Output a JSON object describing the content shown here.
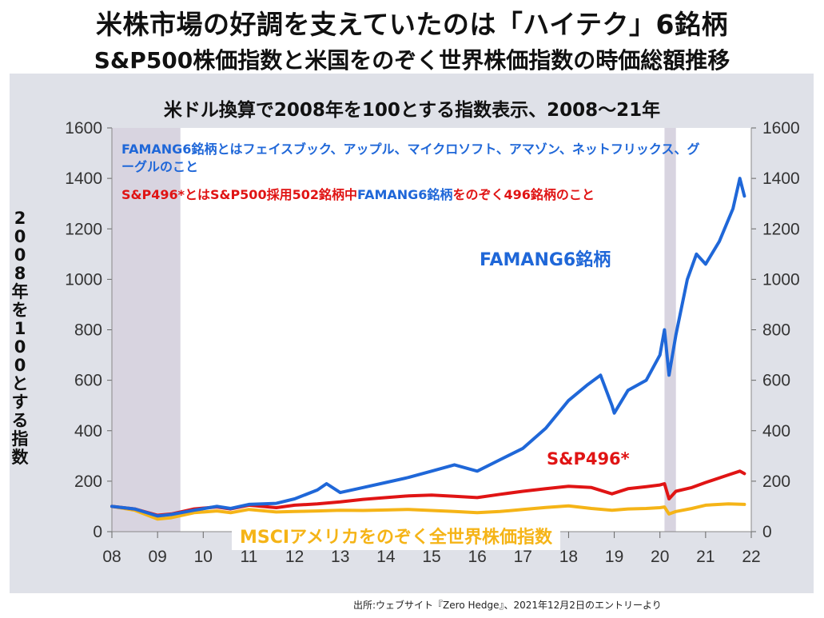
{
  "header": {
    "title": "米株市場の好調を支えていたのは「ハイテク」6銘柄",
    "subtitle": "S&P500株価指数と米国をのぞく世界株価指数の時価総額推移"
  },
  "chart_subtitle": "米ドル換算で2008年を100とする指数表示、2008～21年",
  "y_axis_label": "2008年を100とする指数",
  "notes": {
    "famang_definition": "FAMANG6銘柄とはフェイスブック、アップル、マイクロソフト、アマゾン、ネットフリックス、グーグルのこと",
    "sp496_definition_part1": "S&P496*とはS&P500採用502銘柄中",
    "sp496_definition_part2": "FAMANG6銘柄",
    "sp496_definition_part3": "をのぞく496銘柄のこと"
  },
  "series_labels": {
    "famang": "FAMANG6銘柄",
    "sp496": "S&P496*",
    "msci": "MSCIアメリカをのぞく全世界株価指数"
  },
  "source": "出所:ウェブサイト『Zero Hedge』、2021年12月2日のエントリーより",
  "colors": {
    "famang": "#1f67d8",
    "sp496": "#e01414",
    "msci": "#f5b417",
    "recession_shade": "#d8d4e0"
  },
  "chart_data": {
    "type": "line",
    "x_ticks": [
      "08",
      "09",
      "10",
      "11",
      "12",
      "13",
      "14",
      "15",
      "16",
      "17",
      "18",
      "19",
      "20",
      "21",
      "22"
    ],
    "y_ticks": [
      "0",
      "200",
      "400",
      "600",
      "800",
      "1000",
      "1200",
      "1400",
      "1600"
    ],
    "ylim": [
      0,
      1600
    ],
    "xlim": [
      2008,
      2022
    ],
    "y_axis_both_sides": true,
    "shaded_periods": [
      [
        2008.0,
        2009.5
      ],
      [
        2020.1,
        2020.35
      ]
    ],
    "series": [
      {
        "name": "FAMANG6銘柄",
        "color": "#1f67d8",
        "points": [
          [
            2008.0,
            100
          ],
          [
            2008.5,
            90
          ],
          [
            2009.0,
            62
          ],
          [
            2009.3,
            68
          ],
          [
            2009.8,
            85
          ],
          [
            2010.3,
            100
          ],
          [
            2010.6,
            92
          ],
          [
            2011.0,
            108
          ],
          [
            2011.6,
            112
          ],
          [
            2012.0,
            130
          ],
          [
            2012.5,
            165
          ],
          [
            2012.7,
            190
          ],
          [
            2013.0,
            155
          ],
          [
            2013.5,
            175
          ],
          [
            2014.0,
            195
          ],
          [
            2014.5,
            215
          ],
          [
            2015.0,
            240
          ],
          [
            2015.5,
            265
          ],
          [
            2016.0,
            240
          ],
          [
            2016.5,
            285
          ],
          [
            2017.0,
            330
          ],
          [
            2017.5,
            410
          ],
          [
            2018.0,
            520
          ],
          [
            2018.4,
            580
          ],
          [
            2018.7,
            620
          ],
          [
            2018.95,
            500
          ],
          [
            2019.0,
            470
          ],
          [
            2019.3,
            560
          ],
          [
            2019.7,
            600
          ],
          [
            2020.0,
            700
          ],
          [
            2020.1,
            800
          ],
          [
            2020.2,
            620
          ],
          [
            2020.35,
            780
          ],
          [
            2020.6,
            1000
          ],
          [
            2020.8,
            1100
          ],
          [
            2021.0,
            1060
          ],
          [
            2021.3,
            1150
          ],
          [
            2021.6,
            1280
          ],
          [
            2021.75,
            1400
          ],
          [
            2021.85,
            1330
          ]
        ]
      },
      {
        "name": "S&P496*",
        "color": "#e01414",
        "points": [
          [
            2008.0,
            100
          ],
          [
            2008.5,
            90
          ],
          [
            2009.0,
            65
          ],
          [
            2009.3,
            70
          ],
          [
            2009.8,
            90
          ],
          [
            2010.3,
            98
          ],
          [
            2010.6,
            90
          ],
          [
            2011.0,
            105
          ],
          [
            2011.6,
            95
          ],
          [
            2012.0,
            105
          ],
          [
            2012.5,
            110
          ],
          [
            2013.0,
            118
          ],
          [
            2013.5,
            128
          ],
          [
            2014.0,
            135
          ],
          [
            2014.5,
            142
          ],
          [
            2015.0,
            145
          ],
          [
            2015.5,
            140
          ],
          [
            2016.0,
            135
          ],
          [
            2016.5,
            148
          ],
          [
            2017.0,
            160
          ],
          [
            2017.5,
            170
          ],
          [
            2018.0,
            180
          ],
          [
            2018.5,
            175
          ],
          [
            2018.95,
            150
          ],
          [
            2019.3,
            170
          ],
          [
            2019.7,
            178
          ],
          [
            2020.0,
            185
          ],
          [
            2020.1,
            190
          ],
          [
            2020.2,
            130
          ],
          [
            2020.35,
            160
          ],
          [
            2020.7,
            175
          ],
          [
            2021.0,
            195
          ],
          [
            2021.5,
            225
          ],
          [
            2021.75,
            240
          ],
          [
            2021.85,
            230
          ]
        ]
      },
      {
        "name": "MSCIアメリカをのぞく全世界株価指数",
        "color": "#f5b417",
        "points": [
          [
            2008.0,
            100
          ],
          [
            2008.5,
            85
          ],
          [
            2009.0,
            50
          ],
          [
            2009.3,
            55
          ],
          [
            2009.8,
            75
          ],
          [
            2010.3,
            82
          ],
          [
            2010.6,
            75
          ],
          [
            2011.0,
            88
          ],
          [
            2011.6,
            78
          ],
          [
            2012.0,
            80
          ],
          [
            2012.5,
            82
          ],
          [
            2013.0,
            85
          ],
          [
            2013.5,
            84
          ],
          [
            2014.0,
            86
          ],
          [
            2014.5,
            88
          ],
          [
            2015.0,
            84
          ],
          [
            2015.5,
            80
          ],
          [
            2016.0,
            75
          ],
          [
            2016.5,
            80
          ],
          [
            2017.0,
            88
          ],
          [
            2017.5,
            96
          ],
          [
            2018.0,
            102
          ],
          [
            2018.5,
            92
          ],
          [
            2018.95,
            85
          ],
          [
            2019.3,
            90
          ],
          [
            2019.7,
            92
          ],
          [
            2020.0,
            95
          ],
          [
            2020.1,
            98
          ],
          [
            2020.2,
            70
          ],
          [
            2020.35,
            80
          ],
          [
            2020.7,
            92
          ],
          [
            2021.0,
            105
          ],
          [
            2021.5,
            110
          ],
          [
            2021.85,
            108
          ]
        ]
      }
    ]
  }
}
